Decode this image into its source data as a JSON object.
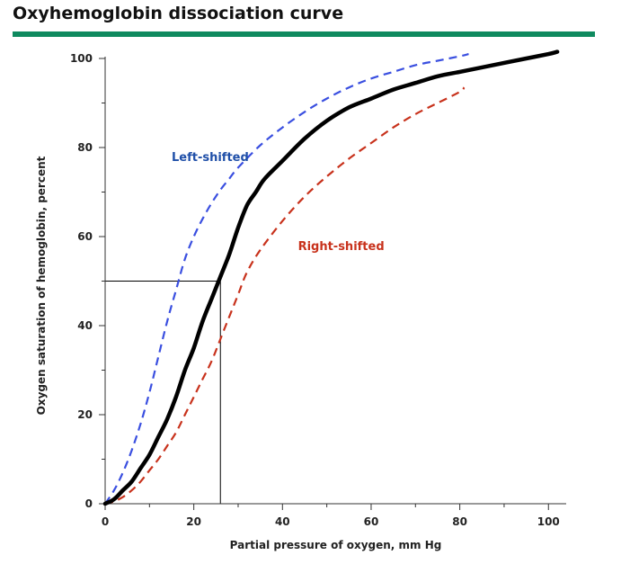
{
  "title": "Oxyhemoglobin dissociation curve",
  "colors": {
    "accent_rule": "#0f8a5f",
    "normal": "#000000",
    "left": "#3a4fe0",
    "right": "#c8321c",
    "left_label": "#1f4fa8",
    "right_label": "#c8321c"
  },
  "chart_data": {
    "type": "line",
    "title": "Oxyhemoglobin dissociation curve",
    "xlabel": "Partial pressure of oxygen, mm Hg",
    "ylabel": "Oxygen saturation of hemoglobin, percent",
    "xlim": [
      0,
      104
    ],
    "ylim": [
      0,
      100
    ],
    "xticks": [
      0,
      20,
      40,
      60,
      80,
      100
    ],
    "yticks": [
      0,
      20,
      40,
      60,
      80,
      100
    ],
    "grid": false,
    "series": [
      {
        "key": "normal",
        "style": "solid",
        "x": [
          0,
          2,
          4,
          6,
          8,
          10,
          12,
          14,
          16,
          18,
          20,
          22,
          24,
          26,
          28,
          30,
          32,
          34,
          36,
          40,
          45,
          50,
          55,
          60,
          65,
          70,
          75,
          80,
          85,
          90,
          95,
          100,
          102
        ],
        "y": [
          0,
          1,
          3,
          5,
          8,
          11,
          15,
          19,
          24,
          30,
          35,
          41,
          46,
          51,
          56,
          62,
          67,
          70,
          73,
          77,
          82,
          86,
          89,
          91,
          93,
          94.5,
          96,
          97,
          98,
          99,
          100,
          101,
          101.5
        ]
      },
      {
        "key": "left",
        "name": "Left-shifted",
        "style": "dashed",
        "x": [
          0,
          2,
          4,
          6,
          8,
          10,
          12,
          14,
          16,
          18,
          20,
          22,
          24,
          26,
          28,
          30,
          35,
          40,
          45,
          50,
          55,
          60,
          65,
          70,
          75,
          80,
          82
        ],
        "y": [
          0,
          3,
          7,
          12,
          18,
          25,
          33,
          41,
          48,
          55,
          60,
          64,
          67.5,
          70.5,
          73,
          75.5,
          80.5,
          84.5,
          88,
          91,
          93.5,
          95.5,
          97,
          98.5,
          99.5,
          100.5,
          101
        ]
      },
      {
        "key": "right",
        "name": "Right-shifted",
        "style": "dashed",
        "x": [
          0,
          2,
          4,
          6,
          8,
          10,
          12,
          14,
          16,
          18,
          20,
          22,
          24,
          26,
          28,
          30,
          32,
          35,
          40,
          45,
          50,
          55,
          60,
          65,
          70,
          75,
          80,
          81
        ],
        "y": [
          0,
          0.5,
          1.5,
          3,
          5,
          7.5,
          10,
          13,
          16,
          20,
          24,
          28,
          32,
          37,
          42,
          47,
          52,
          57,
          63.5,
          69,
          73.5,
          77.5,
          81,
          84.5,
          87.5,
          90,
          92.5,
          93.5
        ]
      }
    ],
    "p50_guide": {
      "x": 26,
      "y": 50
    },
    "annotations": [
      {
        "key": "left",
        "text": "Left-shifted",
        "x": 15,
        "y": 77
      },
      {
        "key": "right",
        "text": "Right-shifted",
        "x": 43.5,
        "y": 57
      }
    ]
  }
}
